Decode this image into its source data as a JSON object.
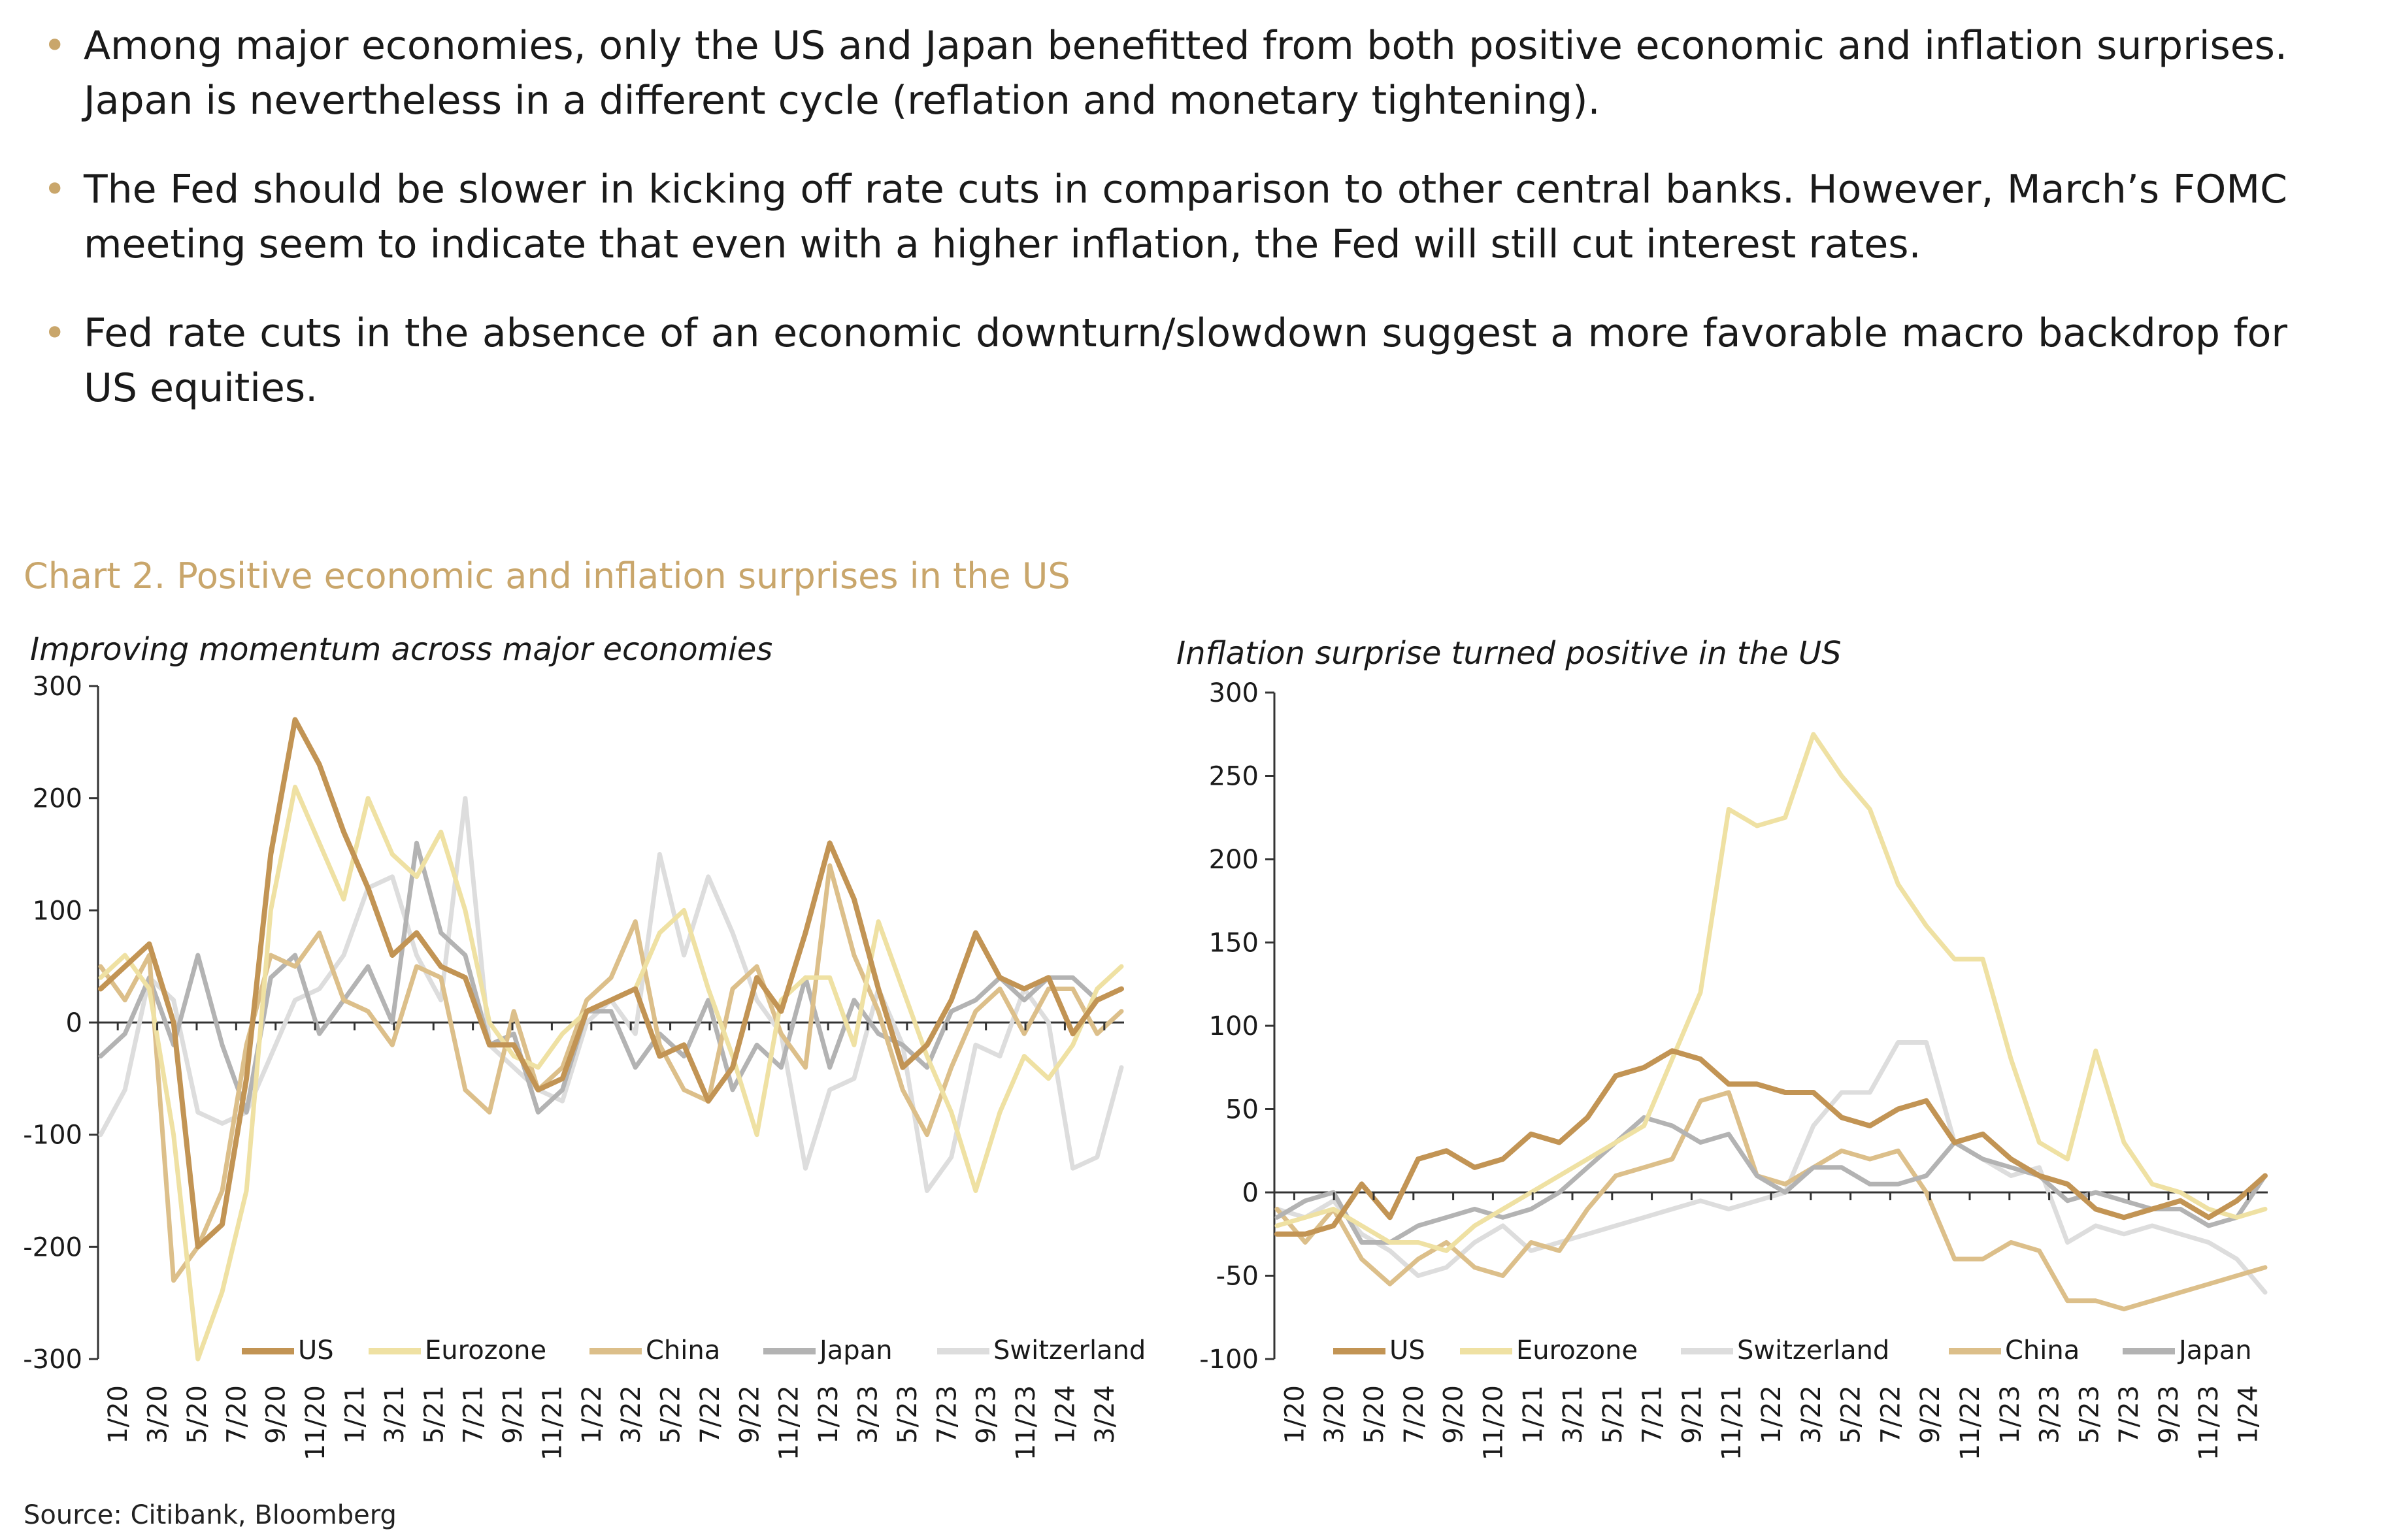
{
  "bullets": [
    "Among major economies, only the US and Japan benefitted from both positive economic and inflation surprises. Japan is nevertheless in a different cycle (reflation and monetary tightening).",
    "The Fed should be slower in kicking off rate cuts in comparison to other central banks. However, March’s FOMC meeting seem to indicate that even with a higher inflation, the Fed will still cut interest rates.",
    "Fed rate cuts in the absence of an economic downturn/slowdown suggest a more favorable macro backdrop for US equities."
  ],
  "chart_title": "Chart 2. Positive economic and inflation surprises in the US",
  "source": "Source: Citibank, Bloomberg",
  "colors": {
    "accent": "#c9a66b",
    "US": "#c29454",
    "Eurozone": "#efe1a3",
    "China": "#dcbf8a",
    "Japan": "#b3b3b3",
    "Switzerland": "#dddddd"
  },
  "chart_data": [
    {
      "type": "line",
      "title": "Improving momentum across major economies",
      "ylim": [
        -300,
        300
      ],
      "yticks": [
        300,
        200,
        100,
        0,
        -100,
        -200,
        -300
      ],
      "xticks": [
        "1/20",
        "3/20",
        "5/20",
        "7/20",
        "9/20",
        "11/20",
        "1/21",
        "3/21",
        "5/21",
        "7/21",
        "9/21",
        "11/21",
        "1/22",
        "3/22",
        "5/22",
        "7/22",
        "9/22",
        "11/22",
        "1/23",
        "3/23",
        "5/23",
        "7/23",
        "9/23",
        "11/23",
        "1/24",
        "3/24"
      ],
      "legend": [
        "US",
        "Eurozone",
        "China",
        "Japan",
        "Switzerland"
      ],
      "series": [
        {
          "name": "Switzerland",
          "values": [
            -100,
            -60,
            40,
            20,
            -80,
            -90,
            -80,
            -30,
            20,
            30,
            60,
            120,
            130,
            60,
            20,
            200,
            -20,
            -40,
            -60,
            -70,
            0,
            20,
            -10,
            150,
            60,
            130,
            80,
            20,
            -10,
            -130,
            -60,
            -50,
            30,
            -20,
            -150,
            -120,
            -20,
            -30,
            30,
            0,
            -130,
            -120,
            -40
          ]
        },
        {
          "name": "Japan",
          "values": [
            -30,
            -10,
            40,
            -20,
            60,
            -20,
            -80,
            40,
            60,
            -10,
            20,
            50,
            0,
            160,
            80,
            60,
            -20,
            -10,
            -80,
            -60,
            10,
            10,
            -40,
            -10,
            -30,
            20,
            -60,
            -20,
            -40,
            40,
            -40,
            20,
            -10,
            -20,
            -40,
            10,
            20,
            40,
            20,
            40,
            40,
            20,
            30
          ]
        },
        {
          "name": "China",
          "values": [
            50,
            20,
            60,
            -230,
            -200,
            -150,
            -20,
            60,
            50,
            80,
            20,
            10,
            -20,
            50,
            40,
            -60,
            -80,
            10,
            -60,
            -40,
            20,
            40,
            90,
            -20,
            -60,
            -70,
            30,
            50,
            -10,
            -40,
            140,
            60,
            10,
            -60,
            -100,
            -40,
            10,
            30,
            -10,
            30,
            30,
            -10,
            10
          ]
        },
        {
          "name": "Eurozone",
          "values": [
            40,
            60,
            30,
            -100,
            -300,
            -240,
            -150,
            100,
            210,
            160,
            110,
            200,
            150,
            130,
            170,
            100,
            0,
            -30,
            -40,
            -10,
            10,
            20,
            30,
            80,
            100,
            30,
            -30,
            -100,
            20,
            40,
            40,
            -20,
            90,
            30,
            -30,
            -80,
            -150,
            -80,
            -30,
            -50,
            -20,
            30,
            50
          ]
        },
        {
          "name": "US",
          "values": [
            30,
            50,
            70,
            0,
            -200,
            -180,
            -50,
            150,
            270,
            230,
            170,
            120,
            60,
            80,
            50,
            40,
            -20,
            -20,
            -60,
            -50,
            10,
            20,
            30,
            -30,
            -20,
            -70,
            -40,
            40,
            10,
            80,
            160,
            110,
            30,
            -40,
            -20,
            20,
            80,
            40,
            30,
            40,
            -10,
            20,
            30
          ]
        }
      ]
    },
    {
      "type": "line",
      "title": "Inflation surprise turned positive in the US",
      "ylim": [
        -100,
        300
      ],
      "yticks": [
        300,
        250,
        200,
        150,
        100,
        50,
        0,
        -50,
        -100
      ],
      "xticks": [
        "1/20",
        "3/20",
        "5/20",
        "7/20",
        "9/20",
        "11/20",
        "1/21",
        "3/21",
        "5/21",
        "7/21",
        "9/21",
        "11/21",
        "1/22",
        "3/22",
        "5/22",
        "7/22",
        "9/22",
        "11/22",
        "1/23",
        "3/23",
        "5/23",
        "7/23",
        "9/23",
        "11/23",
        "1/24"
      ],
      "legend": [
        "US",
        "Eurozone",
        "Switzerland",
        "China",
        "Japan"
      ],
      "series": [
        {
          "name": "Switzerland",
          "values": [
            -10,
            -15,
            -5,
            -25,
            -35,
            -50,
            -45,
            -30,
            -20,
            -35,
            -30,
            -25,
            -20,
            -15,
            -10,
            -5,
            -10,
            -5,
            0,
            40,
            60,
            60,
            90,
            90,
            30,
            20,
            10,
            15,
            -30,
            -20,
            -25,
            -20,
            -25,
            -30,
            -40,
            -60
          ]
        },
        {
          "name": "China",
          "values": [
            -10,
            -30,
            -10,
            -40,
            -55,
            -40,
            -30,
            -45,
            -50,
            -30,
            -35,
            -10,
            10,
            15,
            20,
            55,
            60,
            10,
            5,
            15,
            25,
            20,
            25,
            0,
            -40,
            -40,
            -30,
            -35,
            -65,
            -65,
            -70,
            -65,
            -60,
            -55,
            -50,
            -45
          ]
        },
        {
          "name": "Japan",
          "values": [
            -15,
            -5,
            0,
            -30,
            -30,
            -20,
            -15,
            -10,
            -15,
            -10,
            0,
            15,
            30,
            45,
            40,
            30,
            35,
            10,
            0,
            15,
            15,
            5,
            5,
            10,
            30,
            20,
            15,
            10,
            -5,
            0,
            -5,
            -10,
            -10,
            -20,
            -15,
            10
          ]
        },
        {
          "name": "Eurozone",
          "values": [
            -20,
            -15,
            -10,
            -20,
            -30,
            -30,
            -35,
            -20,
            -10,
            0,
            10,
            20,
            30,
            40,
            80,
            120,
            230,
            220,
            225,
            275,
            250,
            230,
            185,
            160,
            140,
            140,
            80,
            30,
            20,
            85,
            30,
            5,
            0,
            -10,
            -15,
            -10
          ]
        },
        {
          "name": "US",
          "values": [
            -25,
            -25,
            -20,
            5,
            -15,
            20,
            25,
            15,
            20,
            35,
            30,
            45,
            70,
            75,
            85,
            80,
            65,
            65,
            60,
            60,
            45,
            40,
            50,
            55,
            30,
            35,
            20,
            10,
            5,
            -10,
            -15,
            -10,
            -5,
            -15,
            -5,
            10
          ]
        }
      ]
    }
  ]
}
